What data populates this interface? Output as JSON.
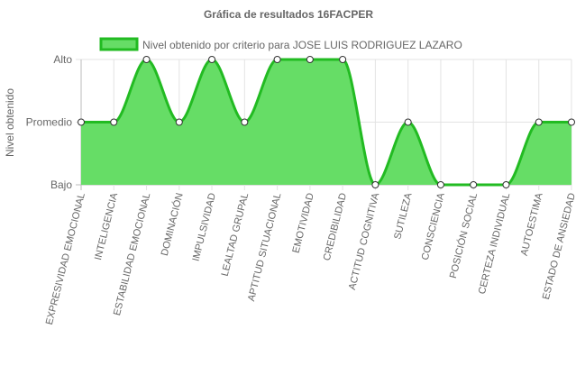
{
  "chart_data": {
    "type": "area",
    "title": "Gráfica de resultados 16FACPER",
    "ylabel": "Nivel obtenido",
    "xlabel": "",
    "y_levels": [
      "Bajo",
      "Promedio",
      "Alto"
    ],
    "ylim": [
      0,
      2
    ],
    "grid": true,
    "legend": "top",
    "categories": [
      "EXPRESIVIDAD EMOCIONAL",
      "INTELIGENCIA",
      "ESTABILIDAD EMOCIONAL",
      "DOMINACIÓN",
      "IMPULSIVIDAD",
      "LEALTAD GRUPAL",
      "APTITUD SITUACIONAL",
      "EMOTIVIDAD",
      "CREDIBILIDAD",
      "ACTITUD COGNITIVA",
      "SUTILEZA",
      "CONSCIENCIA",
      "POSICIÓN SOCIAL",
      "CERTEZA INDIVIDUAL",
      "AUTOESTIMA",
      "ESTADO DE ANSIEDAD"
    ],
    "series": [
      {
        "name": "Nivel obtenido por criterio para JOSE LUIS RODRIGUEZ LAZARO",
        "values": [
          1,
          1,
          2,
          1,
          2,
          1,
          2,
          2,
          2,
          0,
          1,
          0,
          0,
          0,
          1,
          1
        ],
        "fill_color": "#66dd66",
        "line_color": "#22bb22"
      }
    ]
  }
}
